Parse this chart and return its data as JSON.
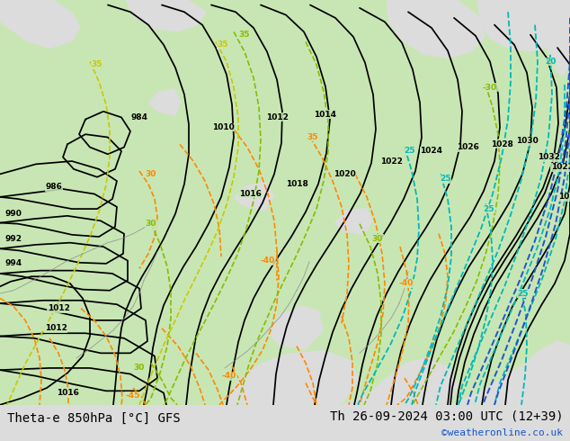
{
  "title_left": "Theta-e 850hPa [°C] GFS",
  "title_right": "Th 26-09-2024 03:00 UTC (12+39)",
  "credit": "©weatheronline.co.uk",
  "bg_color": "#c8dfc8",
  "map_bg_green": "#c8e6b4",
  "sea_color": "#dcdcdc",
  "contour_black": "#000000",
  "contour_cyan": "#00b8b8",
  "contour_orange": "#ff8800",
  "contour_yellow": "#c8c800",
  "contour_lime": "#88bb00",
  "contour_blue": "#2255cc",
  "bottom_bar_color": "#ffffff",
  "bottom_text_color": "#000000",
  "credit_color": "#1155cc",
  "font_size_title": 10,
  "font_size_credit": 8
}
